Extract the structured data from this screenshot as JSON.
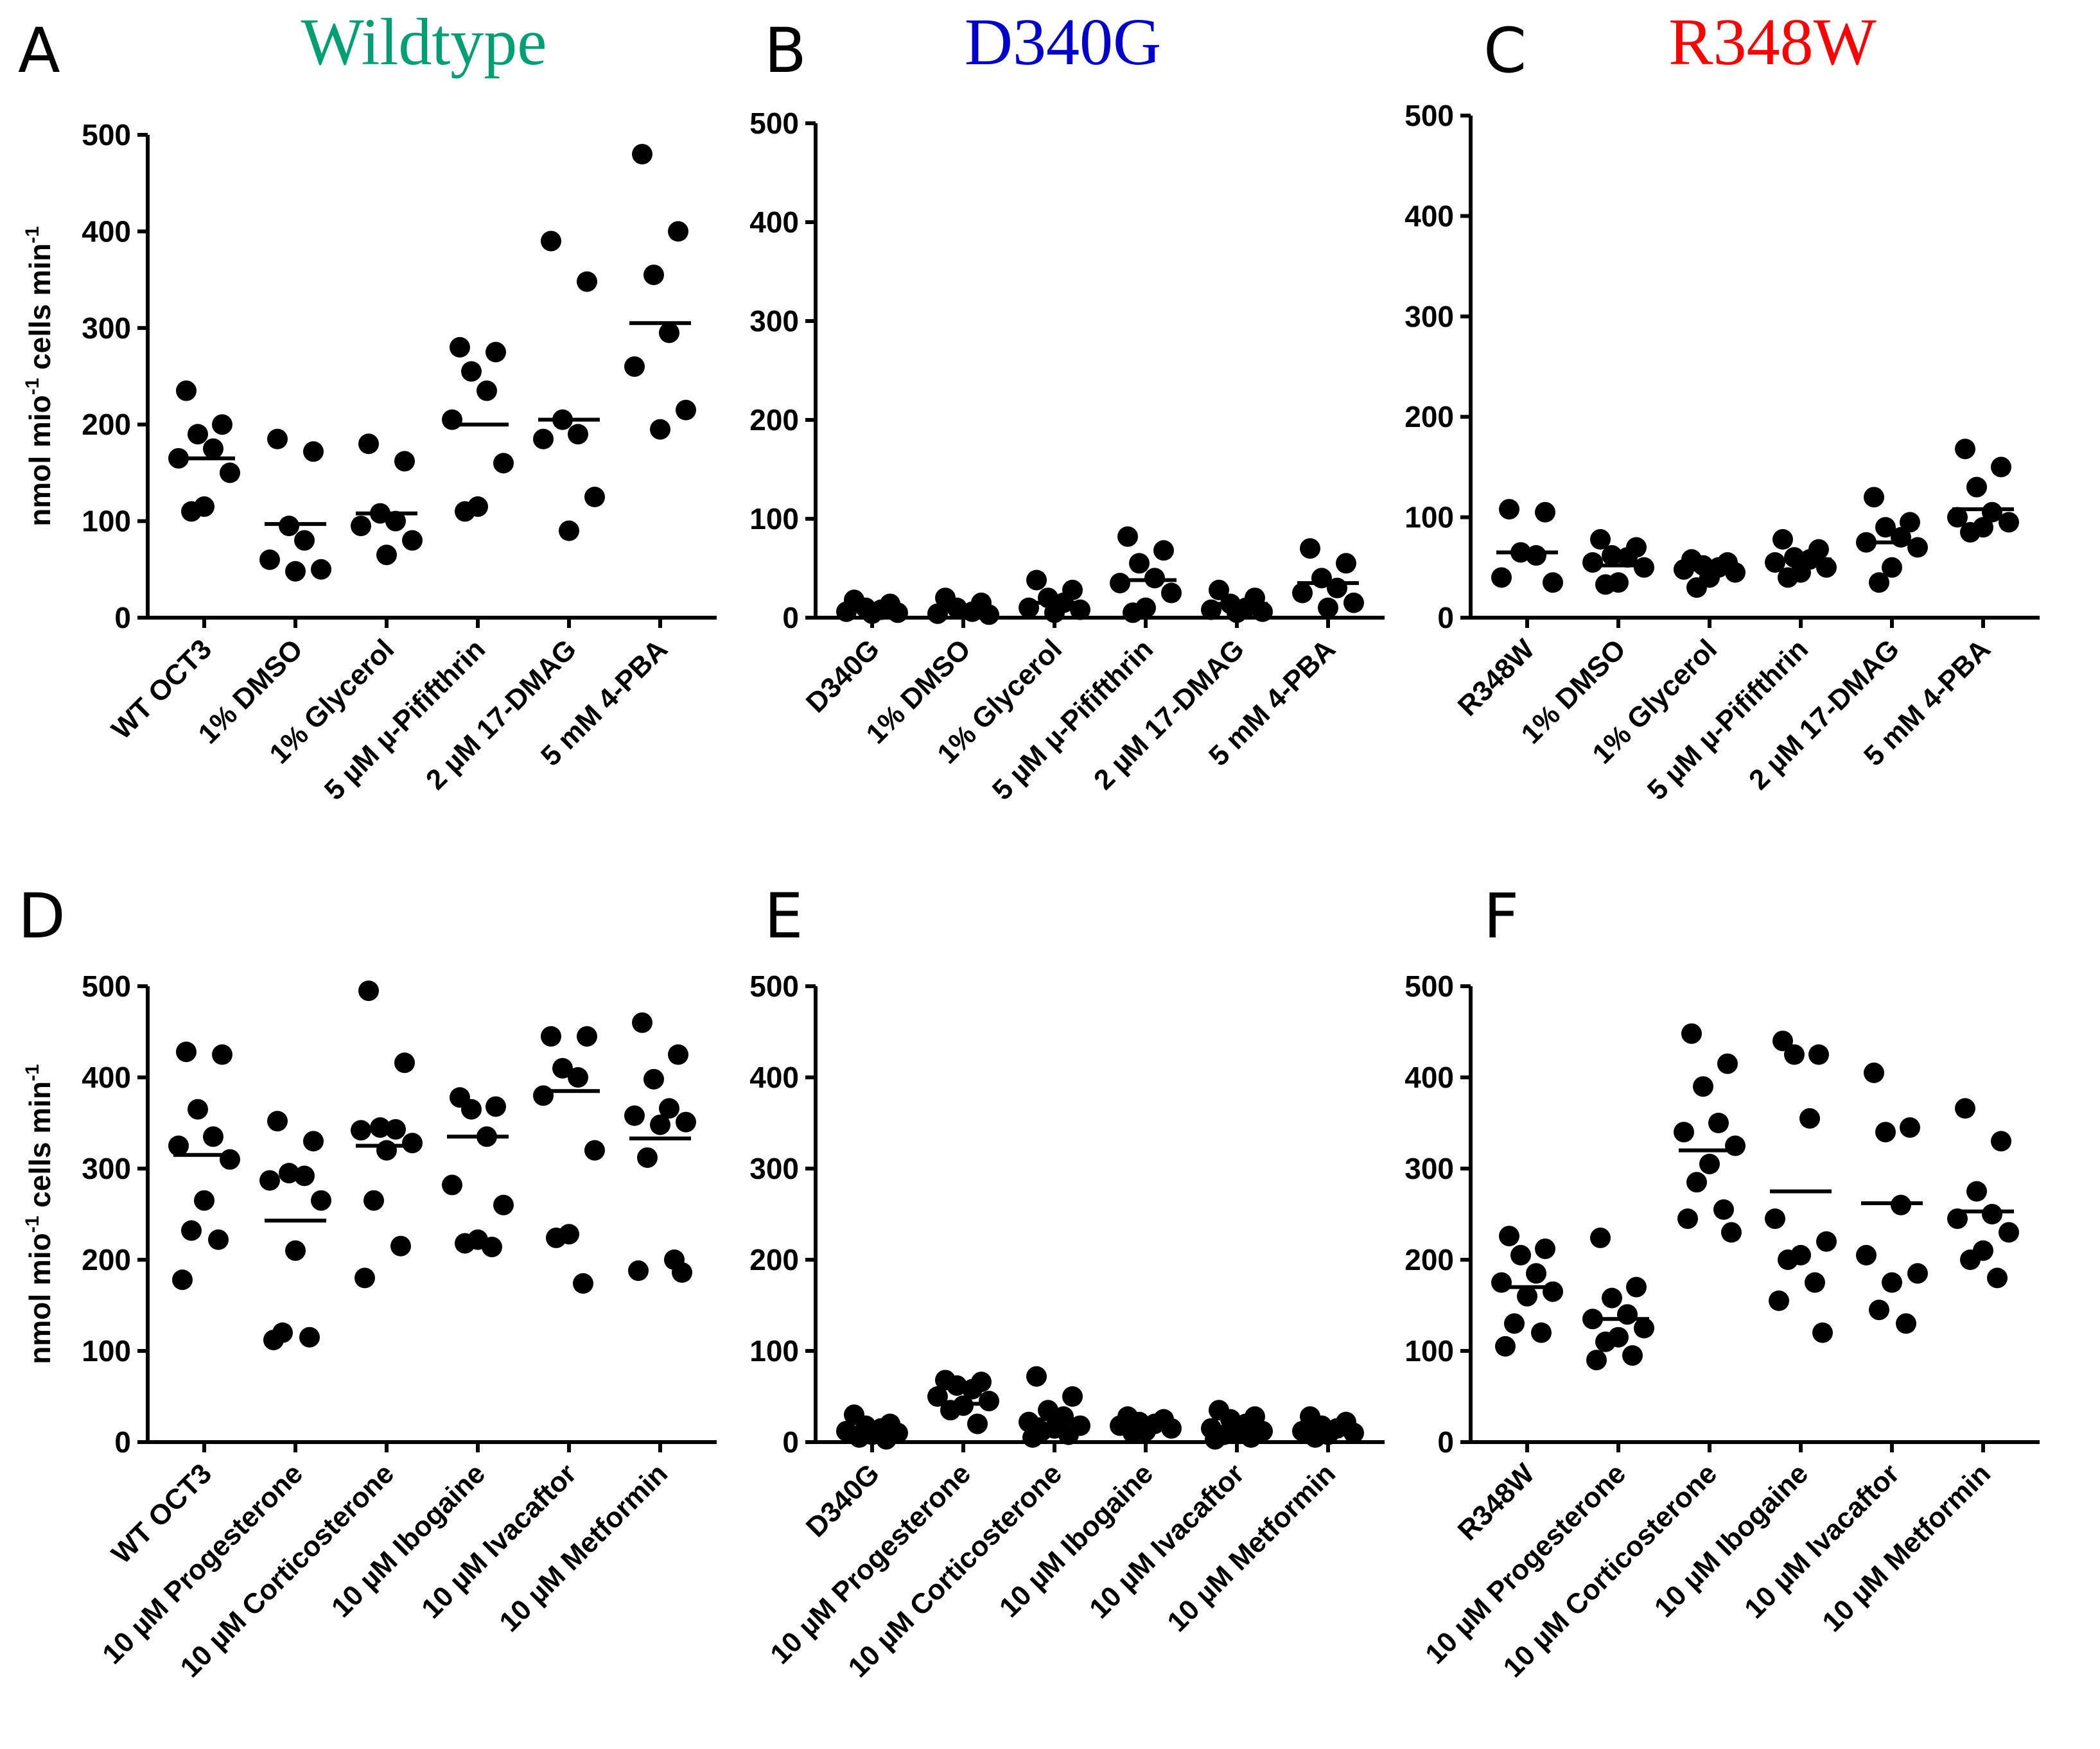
{
  "y_axis_label": {
    "prefix": "nmol mio",
    "sup1": "-1",
    "middle": " cells min",
    "sup2": "-1"
  },
  "colors": {
    "wildtype": "#009E73",
    "d340g": "#0000CC",
    "r348w": "#FF0000",
    "points": "#000000"
  },
  "chart_data": [
    {
      "panel": "A",
      "title": "Wildtype",
      "title_color": "wildtype",
      "type": "scatter",
      "ylim": [
        0,
        500
      ],
      "yticks": [
        0,
        100,
        200,
        300,
        400,
        500
      ],
      "show_ylabel": true,
      "categories": [
        "WT OCT3",
        "1% DMSO",
        "1% Glycerol",
        "5 µM µ-Pififthrin",
        "2 µM 17-DMAG",
        "5 mM 4-PBA"
      ],
      "means": [
        165,
        97,
        108,
        200,
        205,
        305
      ],
      "points": [
        [
          235,
          200,
          190,
          175,
          165,
          150,
          115,
          110
        ],
        [
          185,
          172,
          95,
          80,
          60,
          50,
          48
        ],
        [
          180,
          162,
          108,
          100,
          95,
          80,
          65
        ],
        [
          280,
          275,
          255,
          235,
          205,
          160,
          115,
          110
        ],
        [
          390,
          348,
          205,
          190,
          185,
          125,
          90
        ],
        [
          480,
          400,
          355,
          295,
          260,
          215,
          195
        ]
      ]
    },
    {
      "panel": "B",
      "title": "D340G",
      "title_color": "d340g",
      "type": "scatter",
      "ylim": [
        0,
        500
      ],
      "yticks": [
        0,
        100,
        200,
        300,
        400,
        500
      ],
      "show_ylabel": false,
      "categories": [
        "D340G",
        "1% DMSO",
        "1% Glycerol",
        "5 µM µ-Pififthrin",
        "2 µM 17-DMAG",
        "5 mM 4-PBA"
      ],
      "means": [
        10,
        8,
        15,
        38,
        14,
        35
      ],
      "points": [
        [
          18,
          14,
          10,
          8,
          6,
          5,
          4
        ],
        [
          20,
          15,
          10,
          6,
          4,
          3
        ],
        [
          38,
          28,
          20,
          15,
          10,
          8,
          5
        ],
        [
          82,
          68,
          55,
          40,
          35,
          25,
          10,
          5
        ],
        [
          28,
          20,
          14,
          10,
          8,
          6,
          5
        ],
        [
          70,
          55,
          40,
          30,
          25,
          15,
          10
        ]
      ]
    },
    {
      "panel": "C",
      "title": "R348W",
      "title_color": "r348w",
      "type": "scatter",
      "ylim": [
        0,
        500
      ],
      "yticks": [
        0,
        100,
        200,
        300,
        400,
        500
      ],
      "show_ylabel": false,
      "categories": [
        "R348W",
        "1% DMSO",
        "1% Glycerol",
        "5 µM µ-Pififthrin",
        "2 µM 17-DMAG",
        "5 mM 4-PBA"
      ],
      "means": [
        65,
        52,
        48,
        58,
        75,
        108
      ],
      "points": [
        [
          108,
          105,
          65,
          62,
          40,
          35
        ],
        [
          78,
          70,
          62,
          60,
          55,
          50,
          35,
          33
        ],
        [
          58,
          55,
          52,
          50,
          48,
          45,
          40,
          30
        ],
        [
          78,
          68,
          60,
          58,
          55,
          50,
          45,
          40
        ],
        [
          120,
          95,
          90,
          80,
          75,
          70,
          50,
          35
        ],
        [
          168,
          150,
          130,
          105,
          100,
          95,
          90,
          85
        ]
      ]
    },
    {
      "panel": "D",
      "title": "",
      "type": "scatter",
      "ylim": [
        0,
        500
      ],
      "yticks": [
        0,
        100,
        200,
        300,
        400,
        500
      ],
      "show_ylabel": true,
      "categories": [
        "WT OCT3",
        "10 µM Progesterone",
        "10 µM Corticosterone",
        "10 µM Ibogaine",
        "10 µM Ivacaftor",
        "10 µM Metformin"
      ],
      "means": [
        315,
        243,
        325,
        335,
        385,
        333
      ],
      "points": [
        [
          425,
          428,
          365,
          335,
          325,
          310,
          265,
          232,
          222,
          178
        ],
        [
          352,
          330,
          295,
          292,
          287,
          265,
          210,
          120,
          115,
          112
        ],
        [
          495,
          416,
          345,
          343,
          342,
          328,
          320,
          265,
          215,
          180
        ],
        [
          378,
          368,
          365,
          335,
          282,
          260,
          222,
          218,
          214
        ],
        [
          445,
          445,
          410,
          400,
          380,
          320,
          228,
          224,
          174
        ],
        [
          460,
          425,
          398,
          366,
          358,
          351,
          348,
          312,
          200,
          188,
          186
        ]
      ]
    },
    {
      "panel": "E",
      "title": "",
      "type": "scatter",
      "ylim": [
        0,
        500
      ],
      "yticks": [
        0,
        100,
        200,
        300,
        400,
        500
      ],
      "show_ylabel": false,
      "categories": [
        "D340G",
        "10 µM Progesterone",
        "10 µM Corticosterone",
        "10 µM Ibogaine",
        "10 µM Ivacaftor",
        "10 µM Metformin"
      ],
      "means": [
        15,
        42,
        25,
        20,
        15,
        15
      ],
      "points": [
        [
          30,
          20,
          18,
          15,
          12,
          10,
          8,
          5,
          3
        ],
        [
          68,
          66,
          62,
          58,
          50,
          45,
          40,
          35,
          20
        ],
        [
          72,
          50,
          35,
          28,
          22,
          18,
          15,
          12,
          8,
          5
        ],
        [
          28,
          25,
          22,
          20,
          18,
          15,
          12,
          10
        ],
        [
          35,
          28,
          25,
          20,
          15,
          12,
          10,
          8,
          5,
          3
        ],
        [
          28,
          22,
          18,
          15,
          12,
          10,
          8,
          5
        ]
      ]
    },
    {
      "panel": "F",
      "title": "",
      "type": "scatter",
      "ylim": [
        0,
        500
      ],
      "yticks": [
        0,
        100,
        200,
        300,
        400,
        500
      ],
      "show_ylabel": false,
      "categories": [
        "R348W",
        "10 µM Progesterone",
        "10 µM Corticosterone",
        "10 µM Ibogaine",
        "10 µM Ivacaftor",
        "10 µM Metformin"
      ],
      "means": [
        170,
        135,
        320,
        275,
        262,
        253
      ],
      "points": [
        [
          226,
          212,
          205,
          185,
          175,
          165,
          160,
          130,
          120,
          105
        ],
        [
          224,
          170,
          158,
          140,
          135,
          125,
          115,
          110,
          95,
          90
        ],
        [
          448,
          415,
          390,
          350,
          340,
          325,
          305,
          285,
          255,
          245,
          230
        ],
        [
          440,
          425,
          425,
          355,
          245,
          220,
          205,
          200,
          175,
          155,
          120
        ],
        [
          405,
          345,
          340,
          260,
          205,
          185,
          175,
          145,
          130
        ],
        [
          366,
          330,
          275,
          250,
          245,
          230,
          210,
          200,
          180
        ]
      ]
    }
  ]
}
